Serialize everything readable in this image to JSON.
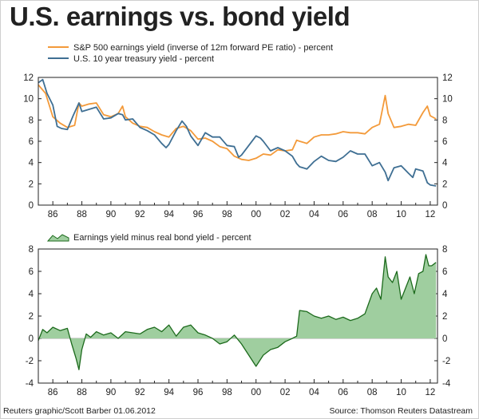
{
  "page": {
    "title": "U.S. earnings vs. bond yield",
    "credit": "Reuters graphic/Scott Barber 01.06.2012",
    "source": "Source: Thomson Reuters Datastream"
  },
  "colors": {
    "earnings": "#f39a3a",
    "treasury": "#3f6f93",
    "spread_line": "#1c6a1c",
    "spread_fill": "#9fce9f",
    "axis": "#222222",
    "grid": "#d9d9d9"
  },
  "chart_data": [
    {
      "type": "line",
      "legend": [
        "S&P 500 earnings yield (inverse of 12m forward PE ratio) - percent",
        "U.S. 10 year treasury yield - percent"
      ],
      "xlabel": "",
      "ylabel": "",
      "xlim": [
        1985.0,
        2012.5
      ],
      "ylim": [
        0,
        12
      ],
      "yticks": [
        "0",
        "2",
        "4",
        "6",
        "8",
        "10",
        "12"
      ],
      "xticks": [
        "86",
        "88",
        "90",
        "92",
        "94",
        "96",
        "98",
        "00",
        "02",
        "04",
        "06",
        "08",
        "10",
        "12"
      ],
      "series": [
        {
          "name": "S&P 500 earnings yield (inverse of 12m forward PE ratio) - percent",
          "x": [
            1985.0,
            1985.5,
            1986.0,
            1986.5,
            1987.0,
            1987.5,
            1987.8,
            1988.0,
            1988.5,
            1989.0,
            1989.5,
            1990.0,
            1990.5,
            1990.8,
            1991.0,
            1991.5,
            1992.0,
            1992.5,
            1993.0,
            1993.5,
            1994.0,
            1994.5,
            1995.0,
            1995.5,
            1996.0,
            1996.5,
            1997.0,
            1997.5,
            1998.0,
            1998.5,
            1999.0,
            1999.5,
            2000.0,
            2000.5,
            2001.0,
            2001.5,
            2002.0,
            2002.5,
            2002.8,
            2003.0,
            2003.5,
            2004.0,
            2004.5,
            2005.0,
            2005.5,
            2006.0,
            2006.5,
            2007.0,
            2007.5,
            2008.0,
            2008.5,
            2008.9,
            2009.1,
            2009.5,
            2010.0,
            2010.5,
            2011.0,
            2011.5,
            2011.8,
            2012.0,
            2012.4
          ],
          "y": [
            11.3,
            10.5,
            8.3,
            7.7,
            7.3,
            7.5,
            9.6,
            9.3,
            9.5,
            9.6,
            8.5,
            8.3,
            8.6,
            9.3,
            8.3,
            7.7,
            7.4,
            7.3,
            6.9,
            6.6,
            6.4,
            7.2,
            7.4,
            7.0,
            6.2,
            6.3,
            6.0,
            5.5,
            5.3,
            4.6,
            4.3,
            4.2,
            4.4,
            4.8,
            4.7,
            5.2,
            5.1,
            5.2,
            6.1,
            6.0,
            5.8,
            6.4,
            6.6,
            6.6,
            6.7,
            6.9,
            6.8,
            6.8,
            6.7,
            7.3,
            7.6,
            10.3,
            8.6,
            7.3,
            7.4,
            7.6,
            7.5,
            8.7,
            9.3,
            8.4,
            8.1
          ]
        },
        {
          "name": "U.S. 10 year treasury yield - percent",
          "x": [
            1985.0,
            1985.3,
            1985.6,
            1986.0,
            1986.3,
            1986.6,
            1987.0,
            1987.4,
            1987.8,
            1988.0,
            1988.5,
            1989.0,
            1989.5,
            1990.0,
            1990.5,
            1990.8,
            1991.0,
            1991.5,
            1992.0,
            1992.5,
            1993.0,
            1993.5,
            1993.8,
            1994.0,
            1994.5,
            1994.9,
            1995.2,
            1995.5,
            1996.0,
            1996.5,
            1997.0,
            1997.5,
            1998.0,
            1998.5,
            1998.8,
            1999.0,
            1999.5,
            2000.0,
            2000.3,
            2000.5,
            2001.0,
            2001.5,
            2002.0,
            2002.5,
            2002.8,
            2003.0,
            2003.5,
            2004.0,
            2004.5,
            2005.0,
            2005.5,
            2006.0,
            2006.5,
            2007.0,
            2007.5,
            2008.0,
            2008.5,
            2008.9,
            2009.1,
            2009.5,
            2010.0,
            2010.5,
            2010.8,
            2011.0,
            2011.5,
            2011.8,
            2012.0,
            2012.4
          ],
          "y": [
            11.5,
            11.8,
            10.5,
            9.4,
            7.4,
            7.2,
            7.1,
            8.4,
            9.6,
            8.8,
            9.0,
            9.2,
            8.1,
            8.2,
            8.6,
            8.5,
            8.0,
            8.1,
            7.3,
            7.0,
            6.6,
            5.8,
            5.4,
            5.7,
            7.0,
            7.9,
            7.4,
            6.5,
            5.6,
            6.8,
            6.4,
            6.4,
            5.6,
            5.5,
            4.5,
            4.7,
            5.6,
            6.5,
            6.3,
            6.0,
            5.1,
            5.4,
            5.1,
            4.6,
            3.9,
            3.6,
            3.4,
            4.1,
            4.6,
            4.2,
            4.1,
            4.5,
            5.1,
            4.8,
            4.8,
            3.7,
            4.0,
            3.1,
            2.3,
            3.5,
            3.7,
            3.0,
            2.6,
            3.4,
            3.2,
            2.1,
            1.9,
            1.8
          ]
        }
      ]
    },
    {
      "type": "area",
      "legend": [
        "Earnings yield minus real bond yield - percent"
      ],
      "xlabel": "",
      "ylabel": "",
      "xlim": [
        1985.0,
        2012.5
      ],
      "ylim": [
        -4,
        8
      ],
      "yticks": [
        "-4",
        "-2",
        "0",
        "2",
        "4",
        "6",
        "8"
      ],
      "xticks": [
        "86",
        "88",
        "90",
        "92",
        "94",
        "96",
        "98",
        "00",
        "02",
        "04",
        "06",
        "08",
        "10",
        "12"
      ],
      "series": [
        {
          "name": "Earnings yield minus real bond yield - percent",
          "x": [
            1985.0,
            1985.3,
            1985.6,
            1986.0,
            1986.5,
            1987.0,
            1987.3,
            1987.6,
            1987.8,
            1988.0,
            1988.3,
            1988.6,
            1989.0,
            1989.5,
            1990.0,
            1990.5,
            1991.0,
            1991.5,
            1992.0,
            1992.5,
            1993.0,
            1993.5,
            1994.0,
            1994.5,
            1995.0,
            1995.5,
            1996.0,
            1996.5,
            1997.0,
            1997.5,
            1998.0,
            1998.5,
            1999.0,
            1999.5,
            2000.0,
            2000.5,
            2001.0,
            2001.5,
            2002.0,
            2002.5,
            2002.8,
            2003.0,
            2003.5,
            2004.0,
            2004.5,
            2005.0,
            2005.5,
            2006.0,
            2006.5,
            2007.0,
            2007.5,
            2008.0,
            2008.3,
            2008.6,
            2008.9,
            2009.1,
            2009.4,
            2009.7,
            2010.0,
            2010.3,
            2010.6,
            2010.9,
            2011.2,
            2011.5,
            2011.7,
            2011.9,
            2012.1,
            2012.4
          ],
          "y": [
            -0.2,
            0.8,
            0.5,
            1.0,
            0.7,
            0.9,
            -0.5,
            -1.8,
            -2.8,
            -1.0,
            0.4,
            0.1,
            0.6,
            0.3,
            0.5,
            0.0,
            0.6,
            0.5,
            0.4,
            0.8,
            1.0,
            0.6,
            1.2,
            0.2,
            1.0,
            1.2,
            0.5,
            0.3,
            0.0,
            -0.5,
            -0.3,
            0.3,
            -0.5,
            -1.5,
            -2.5,
            -1.5,
            -1.0,
            -0.8,
            -0.3,
            0.0,
            0.2,
            2.5,
            2.4,
            2.0,
            1.8,
            2.0,
            1.7,
            1.9,
            1.6,
            1.8,
            2.2,
            4.0,
            4.5,
            3.5,
            7.3,
            5.5,
            5.0,
            6.0,
            3.5,
            4.5,
            5.5,
            4.0,
            5.8,
            6.0,
            7.5,
            6.5,
            6.5,
            6.8
          ]
        }
      ]
    }
  ]
}
